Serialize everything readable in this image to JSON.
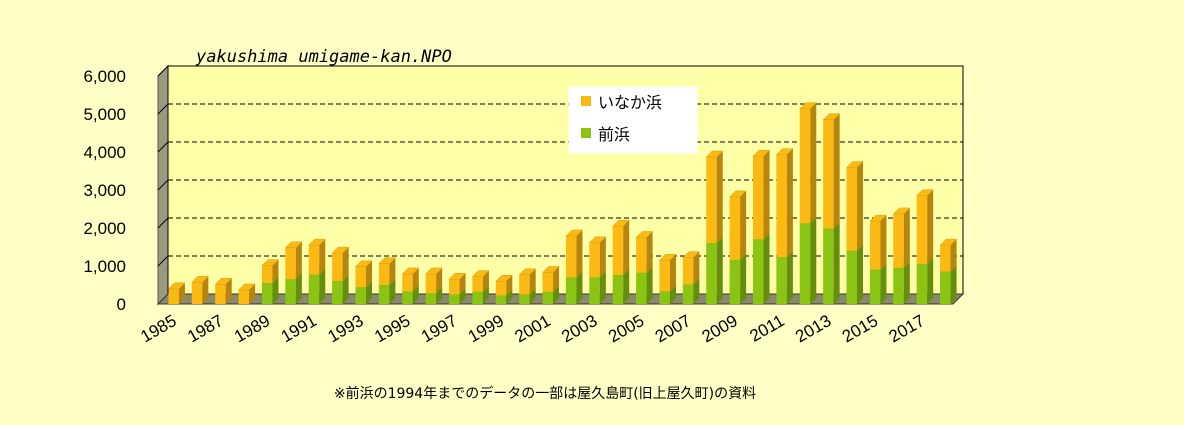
{
  "chart_data": {
    "type": "bar",
    "stacked": true,
    "three_d": true,
    "title": "",
    "xlabel": "",
    "ylabel": "",
    "ylim": [
      0,
      6000
    ],
    "yticks": [
      0,
      1000,
      2000,
      3000,
      4000,
      5000,
      6000
    ],
    "ytick_labels": [
      "0",
      "1,000",
      "2,000",
      "3,000",
      "4,000",
      "5,000",
      "6,000"
    ],
    "categories": [
      "1985",
      "1986",
      "1987",
      "1988",
      "1989",
      "1990",
      "1991",
      "1992",
      "1993",
      "1994",
      "1995",
      "1996",
      "1997",
      "1998",
      "1999",
      "2000",
      "2001",
      "2002",
      "2003",
      "2004",
      "2005",
      "2006",
      "2007",
      "2008",
      "2009",
      "2010",
      "2011",
      "2012",
      "2013",
      "2014",
      "2015",
      "2016",
      "2017",
      "2018"
    ],
    "xtick_labels": [
      "1985",
      "1987",
      "1989",
      "1991",
      "1993",
      "1995",
      "1997",
      "1999",
      "2001",
      "2003",
      "2005",
      "2007",
      "2009",
      "2011",
      "2013",
      "2015",
      "2017"
    ],
    "series": [
      {
        "name": "前浜",
        "color": "#8cc414",
        "values": [
          0,
          0,
          0,
          0,
          550,
          650,
          770,
          600,
          440,
          500,
          330,
          280,
          250,
          320,
          220,
          250,
          320,
          700,
          700,
          760,
          820,
          330,
          510,
          1600,
          1160,
          1700,
          1230,
          2120,
          1980,
          1400,
          900,
          950,
          1050,
          850
        ]
      },
      {
        "name": "いなか浜",
        "color": "#fbb914",
        "values": [
          400,
          570,
          520,
          370,
          460,
          830,
          780,
          740,
          540,
          560,
          460,
          510,
          400,
          400,
          380,
          520,
          510,
          1090,
          910,
          1290,
          930,
          820,
          710,
          2270,
          1660,
          2190,
          2700,
          3020,
          2870,
          2190,
          1280,
          1420,
          1800,
          700
        ]
      }
    ],
    "legend_position": "upper-center",
    "grid": "major-y-dashed",
    "watermark": "yakushima umigame-kan.NPO",
    "footnote": "※前浜の1994年までのデータの一部は屋久島町(旧上屋久町)の資料",
    "background_color": "#ffffc6",
    "plot_color": "#ffffa8"
  }
}
